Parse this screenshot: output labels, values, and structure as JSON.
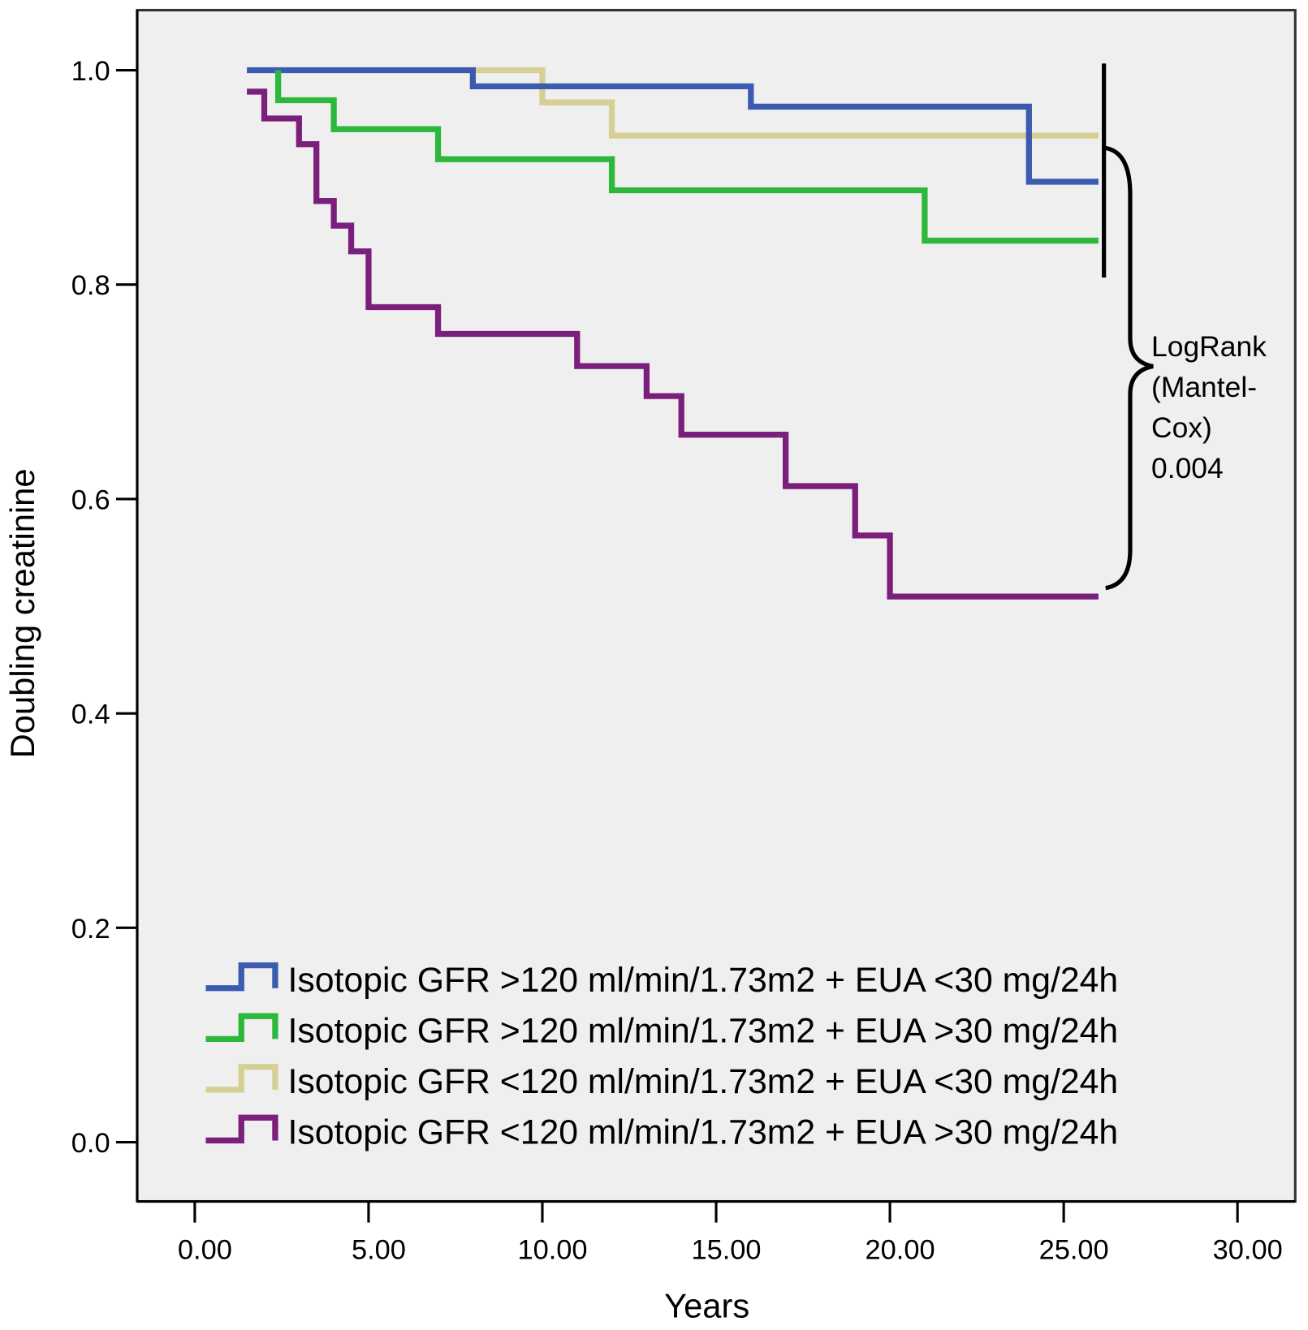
{
  "chart_data": {
    "type": "line",
    "step": true,
    "xlabel": "Years",
    "ylabel": "Doubling creatinine",
    "xlim": [
      -2,
      31.5
    ],
    "ylim": [
      -0.05,
      1.05
    ],
    "x_ticks": [
      0,
      5,
      10,
      15,
      20,
      25,
      30
    ],
    "x_tick_labels": [
      "0.00",
      "5.00",
      "10.00",
      "15.00",
      "20.00",
      "25.00",
      "30.00"
    ],
    "y_ticks": [
      0,
      0.2,
      0.4,
      0.6,
      0.8,
      1.0
    ],
    "y_tick_labels": [
      "0.0",
      "0.2",
      "0.4",
      "0.6",
      "0.8",
      "1.0"
    ],
    "grid": false,
    "background": "#efefef",
    "legend_position": "bottom-left inside",
    "series": [
      {
        "name": "Isotopic GFR >120 ml/min/1.73m2 + EUA <30 mg/24h",
        "color": "#3a5bb0",
        "x": [
          1.5,
          8,
          16,
          24,
          26
        ],
        "y": [
          1.0,
          0.985,
          0.966,
          0.896,
          0.896
        ]
      },
      {
        "name": "Isotopic GFR >120 ml/min/1.73m2 + EUA >30 mg/24h",
        "color": "#2db83d",
        "x": [
          2.4,
          2.4,
          4,
          7,
          12,
          21,
          26
        ],
        "y": [
          1.0,
          0.972,
          0.945,
          0.917,
          0.888,
          0.841,
          0.841
        ]
      },
      {
        "name": "Isotopic GFR <120 ml/min/1.73m2 + EUA <30 mg/24h",
        "color": "#d6cf94",
        "x": [
          1.5,
          10,
          12,
          26
        ],
        "y": [
          1.0,
          0.97,
          0.939,
          0.939
        ]
      },
      {
        "name": "Isotopic GFR <120 ml/min/1.73m2 + EUA >30 mg/24h",
        "color": "#7b1f7c",
        "x": [
          1.5,
          2,
          3,
          3.5,
          4,
          4.5,
          5,
          7,
          11,
          13,
          14,
          17,
          19,
          20,
          26
        ],
        "y": [
          0.98,
          0.955,
          0.931,
          0.878,
          0.855,
          0.831,
          0.779,
          0.754,
          0.724,
          0.696,
          0.66,
          0.612,
          0.566,
          0.509,
          0.509
        ]
      }
    ],
    "annotation": {
      "lines": [
        "LogRank",
        "(Mantel-",
        "Cox)",
        "0.004"
      ],
      "p_value": 0.004
    }
  }
}
